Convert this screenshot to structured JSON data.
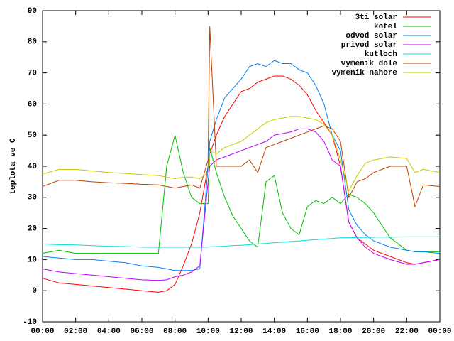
{
  "chart_data": {
    "type": "line",
    "y_label": "teplota ve C",
    "x": [
      0,
      1,
      2,
      3,
      4,
      5,
      6,
      7,
      7.5,
      8,
      8.5,
      9,
      9.5,
      10,
      10.1,
      10.5,
      11,
      11.5,
      12,
      12.5,
      13,
      13.5,
      14,
      14.5,
      15,
      15.5,
      16,
      16.5,
      17,
      17.5,
      18,
      18.5,
      19,
      19.5,
      20,
      21,
      22,
      22.5,
      23,
      24
    ],
    "series": [
      {
        "name": "3ti solar",
        "color": "#ff0000",
        "values": [
          4,
          2.5,
          2,
          1.5,
          1,
          0.5,
          0,
          -0.5,
          0,
          2,
          8,
          15,
          25,
          40,
          44,
          50,
          56,
          60,
          64,
          65,
          67,
          68,
          69,
          69,
          68,
          66,
          63,
          58,
          54,
          50,
          40,
          22,
          17,
          15,
          13,
          11,
          9,
          8.5,
          9,
          10
        ]
      },
      {
        "name": "kotel",
        "color": "#00c000",
        "values": [
          12,
          13,
          12,
          12,
          12,
          12,
          12,
          12,
          40,
          50,
          38,
          30,
          28,
          28,
          46,
          38,
          30,
          24,
          20,
          16,
          14,
          35,
          37,
          25,
          20,
          18,
          27,
          29,
          28,
          30,
          28,
          31,
          30,
          28,
          25,
          17,
          13,
          12.5,
          12.5,
          12.5
        ]
      },
      {
        "name": "odvod solar",
        "color": "#0080ff",
        "values": [
          11,
          10.5,
          10,
          10,
          9.5,
          9,
          8,
          7.5,
          7,
          6.5,
          6.5,
          6.5,
          7,
          40,
          48,
          55,
          62,
          65,
          68,
          72,
          73,
          72,
          74,
          73,
          73,
          71,
          70,
          66,
          60,
          50,
          45,
          26,
          21,
          18,
          16,
          14,
          13,
          12.5,
          12.5,
          12
        ]
      },
      {
        "name": "privod solar",
        "color": "#c000ff",
        "values": [
          7,
          6,
          5.5,
          5,
          4.5,
          4,
          3.5,
          3.3,
          3.5,
          4.5,
          5,
          6,
          8,
          35,
          40,
          42,
          43,
          44,
          45,
          46,
          47,
          48,
          50,
          50.5,
          51,
          52,
          52,
          51,
          48,
          42,
          40,
          22,
          17,
          14,
          12,
          10,
          8.5,
          8.5,
          9,
          10
        ]
      },
      {
        "name": "kutloch",
        "color": "#00e0e0",
        "values": [
          15,
          14.8,
          14.7,
          14.5,
          14.3,
          14.2,
          14,
          14,
          14,
          14,
          14,
          14,
          14,
          14,
          14.1,
          14.2,
          14.3,
          14.5,
          14.6,
          14.8,
          15,
          15.2,
          15.4,
          15.6,
          15.8,
          16,
          16.2,
          16.4,
          16.6,
          16.8,
          17,
          17,
          17.1,
          17.1,
          17.2,
          17.2,
          17.3,
          17.3,
          17.3,
          17.3
        ]
      },
      {
        "name": "vymenik dole",
        "color": "#c04000",
        "values": [
          33.5,
          35.5,
          35.5,
          35,
          34.7,
          34.5,
          34.2,
          34,
          33.5,
          33,
          33.5,
          34,
          33,
          42,
          85,
          40,
          40,
          40,
          40,
          42,
          38,
          46,
          47,
          48,
          49,
          50,
          51,
          52,
          53,
          52,
          48,
          30,
          35,
          36,
          38,
          40,
          40,
          27,
          34,
          33.5
        ]
      },
      {
        "name": "vymenik nahore",
        "color": "#c8c800",
        "values": [
          37.5,
          39,
          39,
          38.5,
          38,
          37.7,
          37.3,
          37,
          36.5,
          36,
          36.5,
          36.5,
          36,
          38,
          45,
          44,
          46,
          47,
          48,
          50,
          52,
          54,
          55,
          55.5,
          56,
          56,
          55.5,
          55,
          53.5,
          50,
          42,
          32,
          37,
          41,
          42,
          43,
          42.5,
          38,
          39,
          38
        ]
      }
    ],
    "xlim": [
      0,
      24
    ],
    "xticks": [
      {
        "value": 0,
        "label": "00:00"
      },
      {
        "value": 2,
        "label": "02:00"
      },
      {
        "value": 4,
        "label": "04:00"
      },
      {
        "value": 6,
        "label": "06:00"
      },
      {
        "value": 8,
        "label": "08:00"
      },
      {
        "value": 10,
        "label": "10:00"
      },
      {
        "value": 12,
        "label": "12:00"
      },
      {
        "value": 14,
        "label": "14:00"
      },
      {
        "value": 16,
        "label": "16:00"
      },
      {
        "value": 18,
        "label": "18:00"
      },
      {
        "value": 20,
        "label": "20:00"
      },
      {
        "value": 22,
        "label": "22:00"
      },
      {
        "value": 24,
        "label": "00:00"
      }
    ],
    "ylim": [
      -10,
      90
    ],
    "yticks": [
      -10,
      0,
      10,
      20,
      30,
      40,
      50,
      60,
      70,
      80,
      90
    ],
    "legend": "top-right"
  }
}
